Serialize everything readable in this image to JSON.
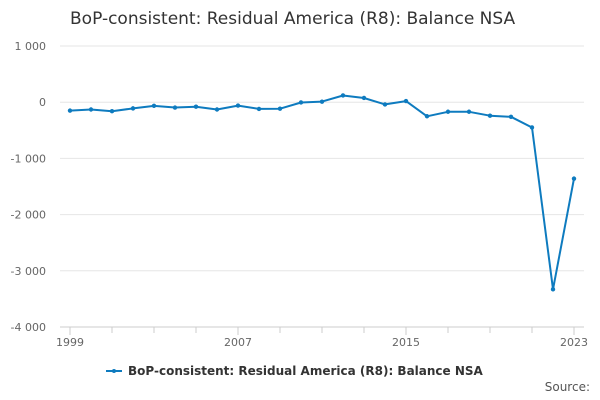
{
  "title": "BoP-consistent: Residual America (R8): Balance NSA",
  "source_label": "Source:",
  "colors": {
    "series": "#0e7bbf",
    "grid": "#e6e6e6",
    "axis": "#cccccc"
  },
  "chart_data": {
    "type": "line",
    "title": "BoP-consistent: Residual America (R8): Balance NSA",
    "xlabel": "",
    "ylabel": "",
    "ylim": [
      -4000,
      1000
    ],
    "xlim": [
      1999,
      2023
    ],
    "yticks": [
      1000,
      0,
      -1000,
      -2000,
      -3000,
      -4000
    ],
    "ytick_labels": [
      "1 000",
      "0",
      "-1 000",
      "-2 000",
      "-3 000",
      "-4 000"
    ],
    "xticks": [
      1999,
      2007,
      2015,
      2023
    ],
    "xtick_labels": [
      "1999",
      "2007",
      "2015",
      "2023"
    ],
    "grid": true,
    "legend": "bottom",
    "series": [
      {
        "name": "BoP-consistent: Residual America (R8): Balance NSA",
        "x": [
          1999,
          2000,
          2001,
          2002,
          2003,
          2004,
          2005,
          2006,
          2007,
          2008,
          2009,
          2010,
          2011,
          2012,
          2013,
          2014,
          2015,
          2016,
          2017,
          2018,
          2019,
          2020,
          2021,
          2022,
          2023
        ],
        "y": [
          -150,
          -130,
          -160,
          -110,
          -65,
          -95,
          -80,
          -130,
          -60,
          -120,
          -115,
          -5,
          10,
          120,
          75,
          -40,
          20,
          -250,
          -170,
          -170,
          -240,
          -260,
          -450,
          -3330,
          -1360
        ]
      }
    ]
  }
}
